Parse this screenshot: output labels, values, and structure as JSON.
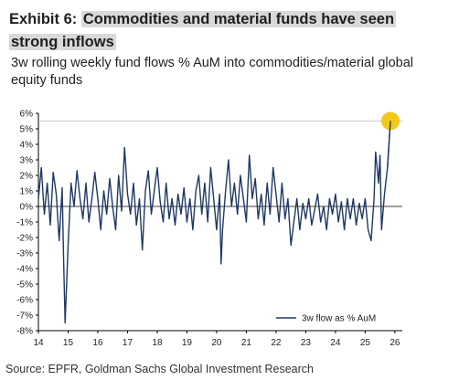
{
  "header": {
    "exhibit_label": "Exhibit 6:",
    "title_part1": "Commodities and material funds have seen",
    "title_part2": "strong inflows",
    "subtitle": "3w rolling weekly fund flows % AuM into commodities/material global equity funds"
  },
  "footer": {
    "source": "Source: EPFR, Goldman Sachs Global Investment Research"
  },
  "colors": {
    "line": "#1f3864",
    "highlight_marker": "#f2c200",
    "title_highlight": "#d9d9d9"
  },
  "chart_data": {
    "type": "line",
    "title": "",
    "xlabel": "",
    "ylabel": "",
    "y_ticks": [
      "6%",
      "5%",
      "4%",
      "3%",
      "2%",
      "1%",
      "0%",
      "-1%",
      "-2%",
      "-3%",
      "-4%",
      "-5%",
      "-6%",
      "-7%",
      "-8%"
    ],
    "x_ticks": [
      "14",
      "15",
      "16",
      "17",
      "18",
      "19",
      "20",
      "21",
      "22",
      "23",
      "24",
      "25",
      "26"
    ],
    "ylim": [
      -8,
      6
    ],
    "xlim": [
      2014.0,
      2026.25
    ],
    "grid": false,
    "legend_position": "bottom-right",
    "reference_line": 0,
    "series": [
      {
        "name": "3w flow as % AuM",
        "points": [
          [
            2014.0,
            0.5
          ],
          [
            2014.1,
            2.5
          ],
          [
            2014.2,
            -0.5
          ],
          [
            2014.3,
            1.5
          ],
          [
            2014.4,
            -1.2
          ],
          [
            2014.5,
            2.2
          ],
          [
            2014.6,
            0.8
          ],
          [
            2014.7,
            -2.2
          ],
          [
            2014.8,
            1.2
          ],
          [
            2014.85,
            -3.5
          ],
          [
            2014.9,
            -7.5
          ],
          [
            2015.0,
            -2.5
          ],
          [
            2015.1,
            1.5
          ],
          [
            2015.2,
            0.0
          ],
          [
            2015.3,
            2.3
          ],
          [
            2015.4,
            0.5
          ],
          [
            2015.5,
            -0.8
          ],
          [
            2015.6,
            1.5
          ],
          [
            2015.7,
            -1.0
          ],
          [
            2015.8,
            0.5
          ],
          [
            2015.9,
            2.2
          ],
          [
            2016.0,
            0.5
          ],
          [
            2016.1,
            -1.5
          ],
          [
            2016.2,
            1.0
          ],
          [
            2016.3,
            -0.5
          ],
          [
            2016.4,
            1.8
          ],
          [
            2016.5,
            0.0
          ],
          [
            2016.6,
            -1.5
          ],
          [
            2016.7,
            2.0
          ],
          [
            2016.8,
            -0.3
          ],
          [
            2016.9,
            3.8
          ],
          [
            2017.0,
            0.8
          ],
          [
            2017.1,
            -0.5
          ],
          [
            2017.2,
            1.5
          ],
          [
            2017.3,
            -1.2
          ],
          [
            2017.4,
            0.5
          ],
          [
            2017.5,
            -2.8
          ],
          [
            2017.6,
            1.0
          ],
          [
            2017.7,
            2.3
          ],
          [
            2017.8,
            -0.5
          ],
          [
            2017.9,
            1.0
          ],
          [
            2018.0,
            2.5
          ],
          [
            2018.1,
            0.3
          ],
          [
            2018.2,
            -1.0
          ],
          [
            2018.3,
            1.5
          ],
          [
            2018.4,
            -0.8
          ],
          [
            2018.5,
            0.5
          ],
          [
            2018.6,
            -1.2
          ],
          [
            2018.7,
            0.8
          ],
          [
            2018.8,
            -0.5
          ],
          [
            2018.9,
            1.2
          ],
          [
            2019.0,
            -1.0
          ],
          [
            2019.1,
            0.5
          ],
          [
            2019.2,
            -1.5
          ],
          [
            2019.3,
            1.0
          ],
          [
            2019.4,
            2.0
          ],
          [
            2019.5,
            -0.5
          ],
          [
            2019.6,
            1.5
          ],
          [
            2019.7,
            -1.0
          ],
          [
            2019.8,
            2.5
          ],
          [
            2019.9,
            0.5
          ],
          [
            2020.0,
            -1.5
          ],
          [
            2020.1,
            0.8
          ],
          [
            2020.15,
            -3.7
          ],
          [
            2020.2,
            -1.5
          ],
          [
            2020.3,
            1.0
          ],
          [
            2020.4,
            3.0
          ],
          [
            2020.5,
            0.0
          ],
          [
            2020.6,
            1.5
          ],
          [
            2020.7,
            -0.5
          ],
          [
            2020.8,
            2.0
          ],
          [
            2020.9,
            0.5
          ],
          [
            2021.0,
            -1.0
          ],
          [
            2021.1,
            3.3
          ],
          [
            2021.2,
            0.5
          ],
          [
            2021.3,
            1.8
          ],
          [
            2021.4,
            -0.8
          ],
          [
            2021.5,
            0.8
          ],
          [
            2021.6,
            -1.2
          ],
          [
            2021.7,
            1.5
          ],
          [
            2021.8,
            -0.5
          ],
          [
            2021.9,
            2.5
          ],
          [
            2022.0,
            0.8
          ],
          [
            2022.1,
            -1.0
          ],
          [
            2022.2,
            1.5
          ],
          [
            2022.3,
            -0.8
          ],
          [
            2022.4,
            0.5
          ],
          [
            2022.5,
            -2.5
          ],
          [
            2022.6,
            -1.0
          ],
          [
            2022.7,
            0.5
          ],
          [
            2022.8,
            -1.5
          ],
          [
            2022.9,
            0.2
          ],
          [
            2023.0,
            -0.8
          ],
          [
            2023.1,
            0.5
          ],
          [
            2023.2,
            -1.2
          ],
          [
            2023.3,
            -0.2
          ],
          [
            2023.4,
            0.8
          ],
          [
            2023.5,
            -1.0
          ],
          [
            2023.6,
            0.0
          ],
          [
            2023.7,
            -1.5
          ],
          [
            2023.8,
            0.5
          ],
          [
            2023.9,
            -0.5
          ],
          [
            2024.0,
            0.8
          ],
          [
            2024.1,
            -1.0
          ],
          [
            2024.2,
            0.3
          ],
          [
            2024.3,
            -1.5
          ],
          [
            2024.4,
            0.5
          ],
          [
            2024.5,
            -0.8
          ],
          [
            2024.6,
            0.5
          ],
          [
            2024.7,
            -1.2
          ],
          [
            2024.8,
            0.2
          ],
          [
            2024.9,
            -0.8
          ],
          [
            2025.0,
            0.5
          ],
          [
            2025.1,
            -1.5
          ],
          [
            2025.2,
            -2.2
          ],
          [
            2025.3,
            0.5
          ],
          [
            2025.35,
            3.5
          ],
          [
            2025.45,
            1.5
          ],
          [
            2025.5,
            3.3
          ],
          [
            2025.55,
            -1.5
          ],
          [
            2025.65,
            0.8
          ],
          [
            2025.75,
            2.5
          ],
          [
            2025.85,
            5.5
          ]
        ]
      }
    ]
  }
}
